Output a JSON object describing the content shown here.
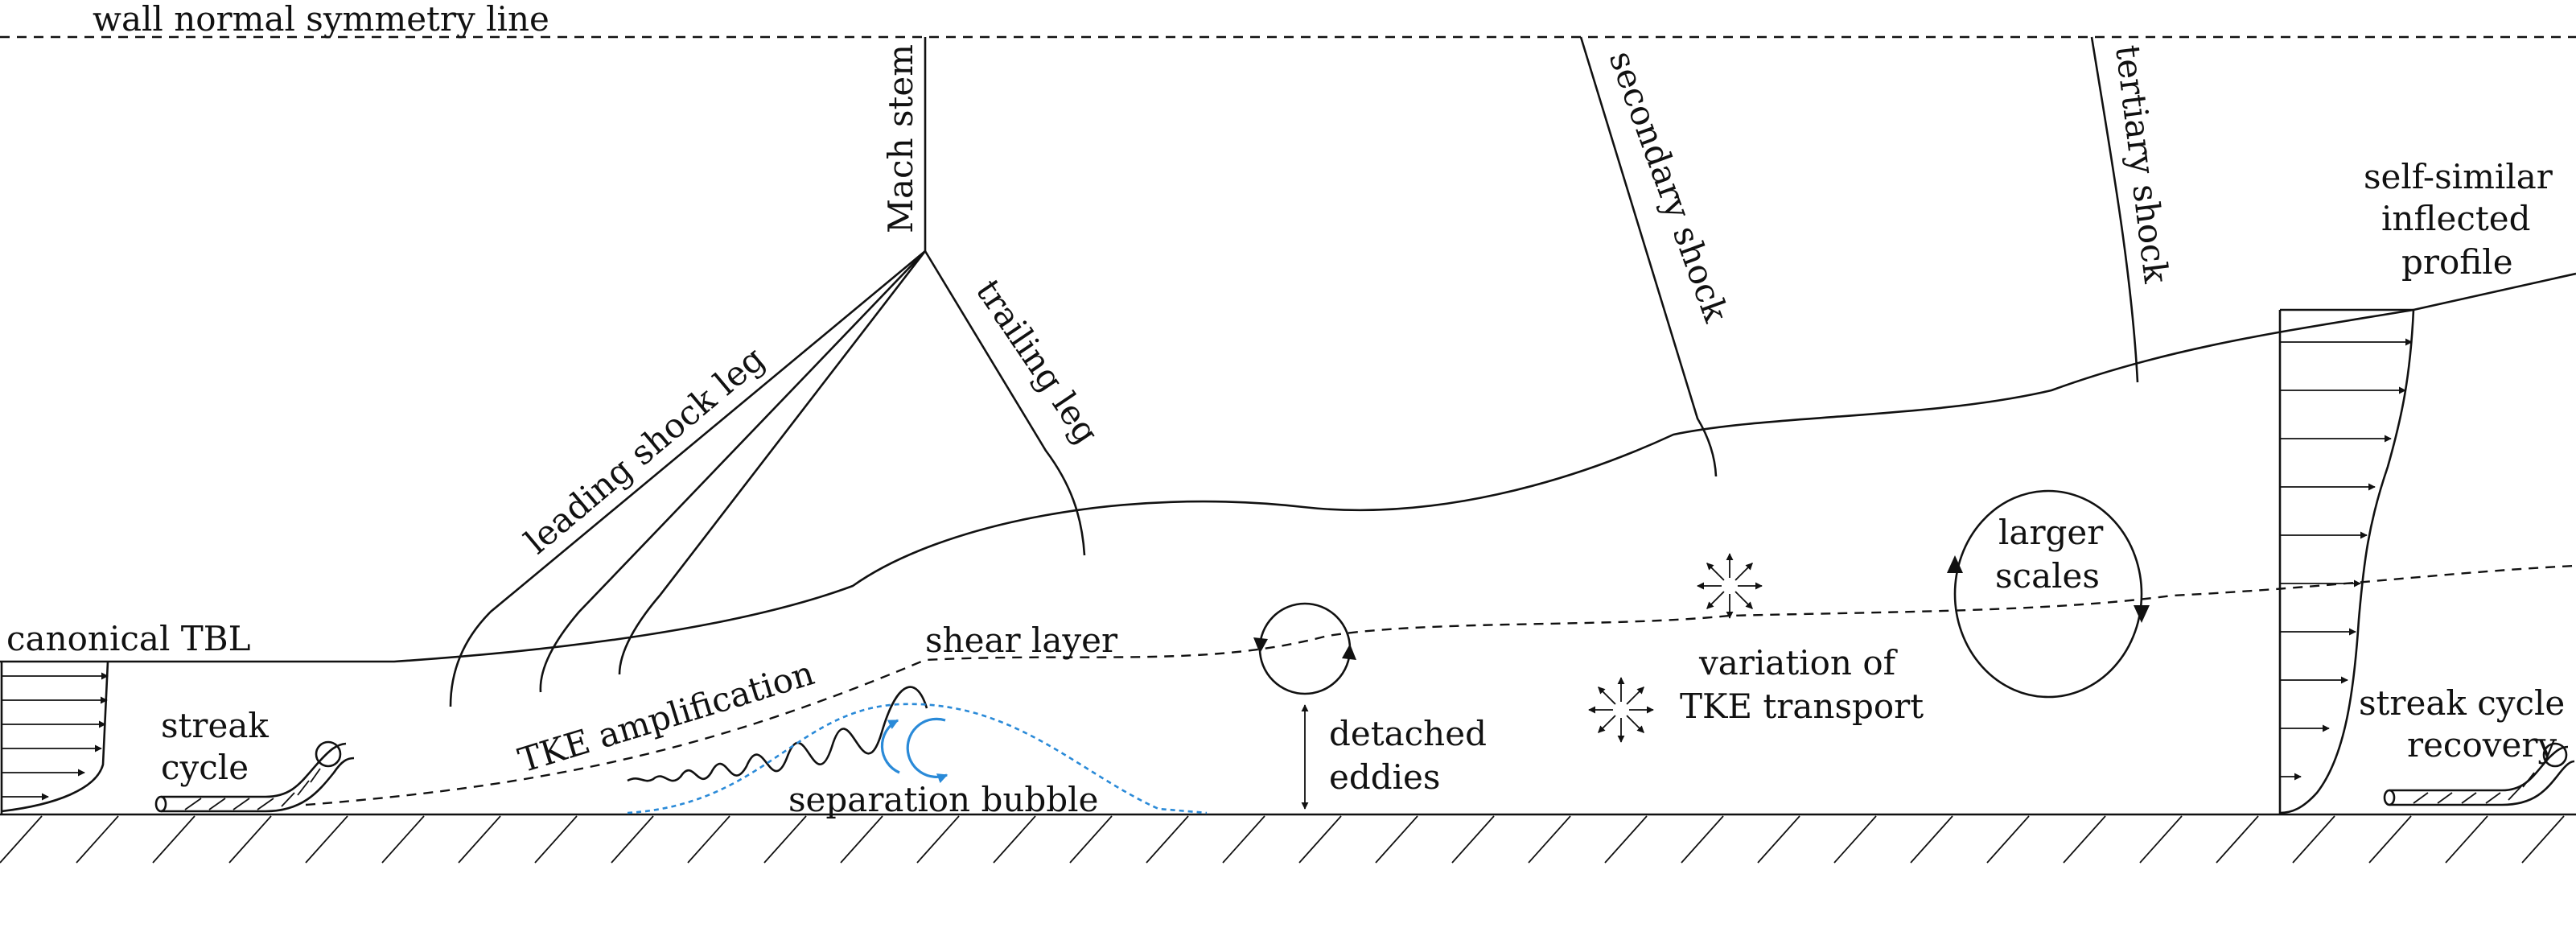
{
  "diagram": {
    "labels": {
      "symmetry": "wall normal symmetry line",
      "mach_stem": "Mach stem",
      "secondary_shock": "secondary shock",
      "tertiary_shock": "tertiary shock",
      "self_similar_1": "self-similar",
      "self_similar_2": "inflected",
      "self_similar_3": "profile",
      "trailing_leg": "trailing leg",
      "leading_shock_leg": "leading shock leg",
      "canonical_tbl": "canonical TBL",
      "streak_1": "streak",
      "streak_2": "cycle",
      "tke_amplification": "TKE amplification",
      "shear_layer": "shear layer",
      "separation_bubble": "separation bubble",
      "detached_1": "detached",
      "detached_2": "eddies",
      "variation_1": "variation of",
      "variation_2": "TKE transport",
      "larger_1": "larger",
      "larger_2": "scales",
      "recovery_1": "streak cycle",
      "recovery_2": "recovery"
    },
    "colors": {
      "ink": "#111111",
      "separation_bubble": "#2a8ad8"
    }
  }
}
